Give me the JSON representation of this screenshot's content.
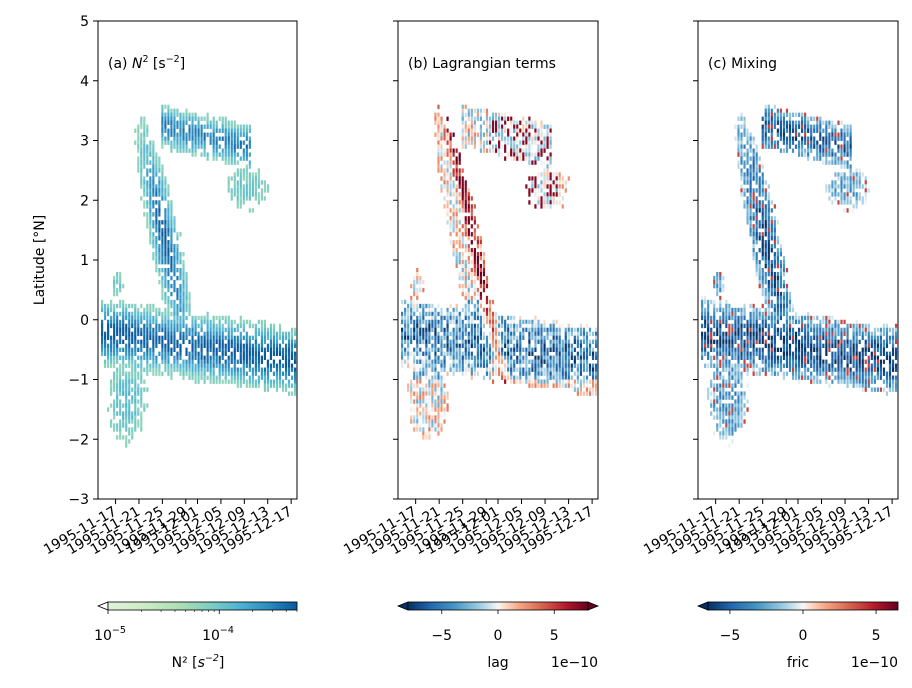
{
  "chart_data": {
    "type": "heatmap",
    "shared_y": {
      "label": "Latitude [°N]",
      "lim": [
        -3,
        5
      ],
      "ticks": [
        5,
        4,
        3,
        2,
        1,
        0,
        -1,
        -2,
        -3
      ],
      "tick_labels": [
        "5",
        "4",
        "3",
        "2",
        "1",
        "0",
        "−1",
        "−2",
        "−3"
      ]
    },
    "shared_x": {
      "type": "date",
      "lim": [
        "1995-11-14",
        "1995-12-18"
      ],
      "ticks": [
        "1995-11-17",
        "1995-11-21",
        "1995-11-25",
        "1995-11-29",
        "1995-12-01",
        "1995-12-05",
        "1995-12-09",
        "1995-12-13",
        "1995-12-17"
      ],
      "tick_labels": [
        "1995-11-17",
        "1995-11-21",
        "1995-11-25",
        "1995-11-29",
        "1995-12-01",
        "1995-12-05",
        "1995-12-09",
        "1995-12-13",
        "1995-12-17"
      ]
    },
    "panels": [
      {
        "id": "a",
        "title": "(a) N² [s⁻²]",
        "title_main": "(a) ",
        "title_var": "N",
        "title_sup": "2",
        "title_unit_open": " [s",
        "title_unit_sup": "−2",
        "title_unit_close": "]",
        "colormap": "GnBu",
        "colorbar": {
          "scale": "log",
          "range": [
            1e-05,
            0.0005
          ],
          "extend": "min",
          "tick_labels": [
            "10",
            "10"
          ],
          "tick_exps": [
            "−5",
            "−4"
          ],
          "label": "N² [s⁻²]",
          "label_main": "N² [",
          "label_var": "s",
          "label_sup": "−2",
          "label_close": "]",
          "offset_text": ""
        }
      },
      {
        "id": "b",
        "title": "(b) Lagrangian terms",
        "colormap": "RdBu_r",
        "colorbar": {
          "scale": "linear",
          "range": [
            -8e-10,
            8e-10
          ],
          "extend": "both",
          "tick_labels": [
            "−5",
            "0",
            "5"
          ],
          "label": "lag",
          "offset_text": "1e−10"
        }
      },
      {
        "id": "c",
        "title": "(c) Mixing",
        "colormap": "RdBu_r",
        "colorbar": {
          "scale": "linear",
          "range": [
            -6.5e-10,
            6.5e-10
          ],
          "extend": "min",
          "tick_labels": [
            "−5",
            "0",
            "5"
          ],
          "label": "fric",
          "offset_text": "1e−10"
        }
      }
    ]
  }
}
